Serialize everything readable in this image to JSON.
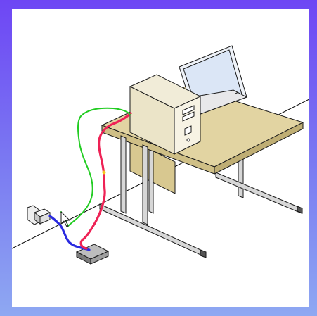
{
  "scene": {
    "colors": {
      "frame_top": "#6e46f4",
      "frame_bottom": "#8ea8f2",
      "canvas": "#ffffff",
      "desk_top": "#e2d4a2",
      "desk_panel": "#d8c890",
      "desk_leg": "#d7d7d7",
      "tower": "#f1ecd8",
      "laptop_screen": "#dbe6f6",
      "wire_green": "#22cc22",
      "wire_red": "#ee2255",
      "wire_blue": "#2a2ae0",
      "outline": "#1a1a1a"
    },
    "objects": [
      "desk",
      "computer-tower",
      "laptop",
      "wall-outlet",
      "plug",
      "power-strip",
      "green-cable",
      "red-cable",
      "blue-cable",
      "mouse-cursor"
    ]
  }
}
